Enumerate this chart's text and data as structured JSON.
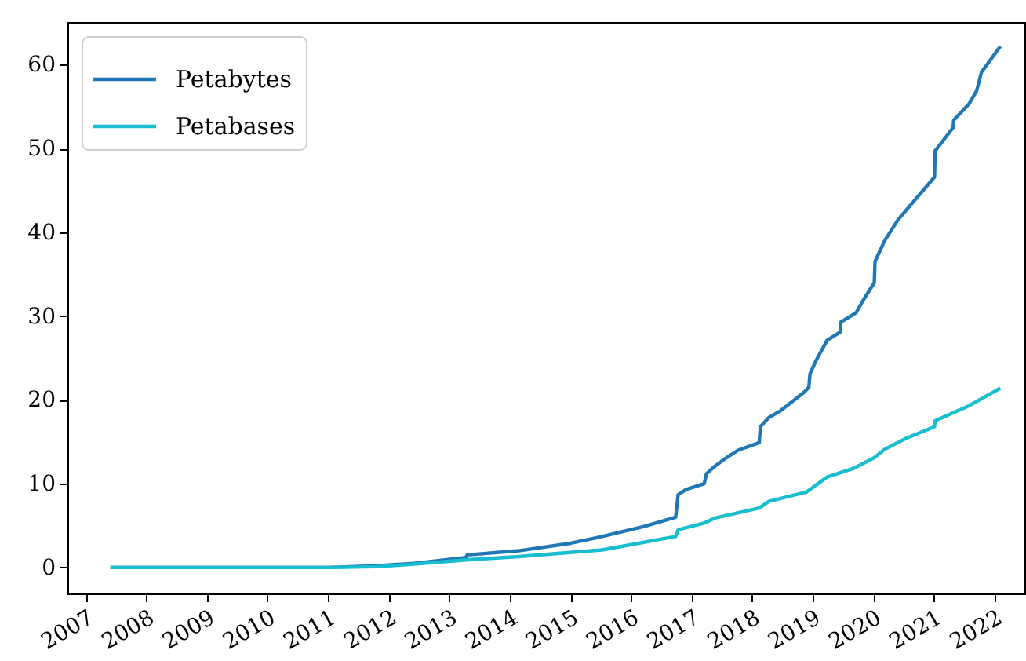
{
  "chart_data": {
    "type": "line",
    "xlim": [
      "2006-09-13",
      "2022-07-01"
    ],
    "ylim": [
      -3.1,
      65.1
    ],
    "xticks": [
      "2007",
      "2008",
      "2009",
      "2010",
      "2011",
      "2012",
      "2013",
      "2014",
      "2015",
      "2016",
      "2017",
      "2018",
      "2019",
      "2020",
      "2021",
      "2022"
    ],
    "yticks": [
      0,
      10,
      20,
      30,
      40,
      50,
      60
    ],
    "legend": "top left",
    "series": [
      {
        "name": "Petabytes",
        "color": "#1f77b4",
        "x": [
          "2007-05-30",
          "2009-01-01",
          "2011-01-01",
          "2011-10-23",
          "2012-06-02",
          "2013-04-12",
          "2013-04-20",
          "2014-02-24",
          "2015-01-04",
          "2015-07-12",
          "2016-03-21",
          "2016-09-27",
          "2016-10-12",
          "2016-11-28",
          "2017-03-18",
          "2017-04-01",
          "2017-05-22",
          "2017-07-23",
          "2017-10-08",
          "2018-02-13",
          "2018-02-20",
          "2018-04-12",
          "2018-06-21",
          "2018-11-10",
          "2018-12-09",
          "2018-12-16",
          "2019-01-19",
          "2019-03-29",
          "2019-06-17",
          "2019-06-21",
          "2019-09-20",
          "2019-10-30",
          "2020-01-08",
          "2020-01-12",
          "2020-03-10",
          "2020-05-30",
          "2020-09-02",
          "2021-01-05",
          "2021-01-08",
          "2021-04-27",
          "2021-05-01",
          "2021-07-31",
          "2021-09-16",
          "2021-10-15",
          "2022-02-06"
        ],
        "values": [
          0,
          0,
          0,
          0.2,
          0.5,
          1.2,
          1.5,
          2.0,
          2.9,
          3.7,
          4.9,
          6.0,
          8.7,
          9.3,
          10.0,
          11.2,
          12.1,
          13.0,
          14.0,
          14.9,
          16.8,
          17.9,
          18.7,
          20.9,
          21.5,
          23.1,
          24.6,
          27.1,
          28.1,
          29.3,
          30.4,
          31.8,
          34.0,
          36.5,
          39.0,
          41.5,
          43.7,
          46.6,
          49.7,
          52.5,
          53.4,
          55.3,
          56.9,
          59.1,
          62.2
        ]
      },
      {
        "name": "Petabases",
        "color": "#17becf",
        "x": [
          "2007-05-30",
          "2009-01-01",
          "2011-01-01",
          "2011-10-23",
          "2012-06-02",
          "2013-04-12",
          "2014-02-24",
          "2015-07-12",
          "2016-09-27",
          "2016-10-12",
          "2016-10-30",
          "2017-03-18",
          "2017-05-22",
          "2018-02-13",
          "2018-04-12",
          "2018-11-25",
          "2019-03-29",
          "2019-09-01",
          "2020-01-08",
          "2020-03-10",
          "2020-07-16",
          "2021-01-05",
          "2021-01-08",
          "2021-07-31",
          "2022-02-06"
        ],
        "values": [
          0,
          0,
          0,
          0.1,
          0.4,
          0.9,
          1.3,
          2.1,
          3.7,
          4.5,
          4.6,
          5.3,
          5.9,
          7.1,
          7.9,
          9.0,
          10.8,
          11.8,
          13.1,
          14.1,
          15.4,
          16.8,
          17.5,
          19.3,
          21.4
        ]
      }
    ]
  }
}
